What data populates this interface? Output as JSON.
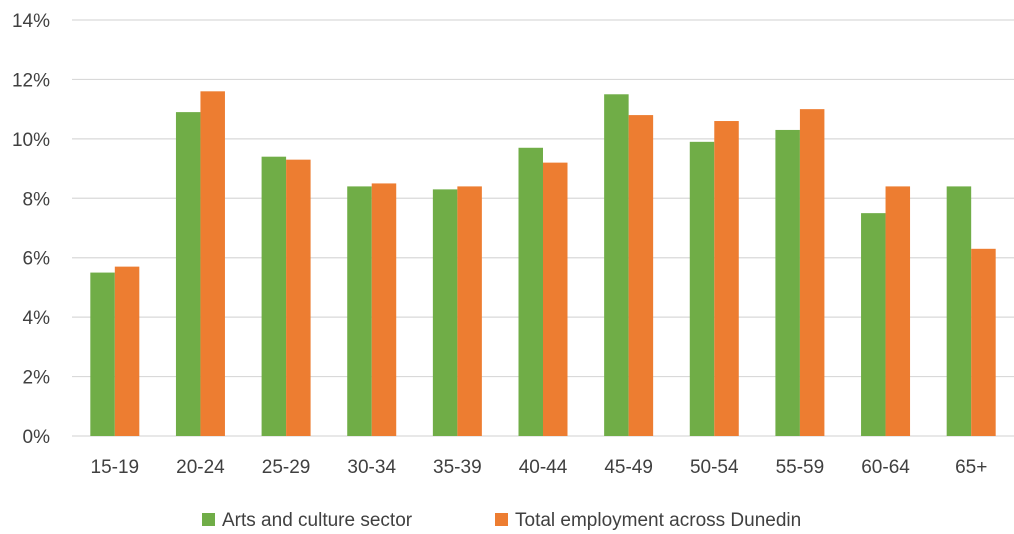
{
  "chart_data": {
    "type": "bar",
    "title": "",
    "xlabel": "",
    "ylabel": "",
    "ylim": [
      0,
      14
    ],
    "y_unit": "%",
    "y_ticks": [
      "0%",
      "2%",
      "4%",
      "6%",
      "8%",
      "10%",
      "12%",
      "14%"
    ],
    "grid": true,
    "legend_position": "bottom",
    "categories": [
      "15-19",
      "20-24",
      "25-29",
      "30-34",
      "35-39",
      "40-44",
      "45-49",
      "50-54",
      "55-59",
      "60-64",
      "65+"
    ],
    "series": [
      {
        "name": "Arts and culture sector",
        "color": "#70AD47",
        "values": [
          5.5,
          10.9,
          9.4,
          8.4,
          8.3,
          9.7,
          11.5,
          9.9,
          10.3,
          7.5,
          8.4
        ]
      },
      {
        "name": "Total employment across Dunedin",
        "color": "#ED7D31",
        "values": [
          5.7,
          11.6,
          9.3,
          8.5,
          8.4,
          9.2,
          10.8,
          10.6,
          11.0,
          8.4,
          6.3
        ]
      }
    ]
  }
}
